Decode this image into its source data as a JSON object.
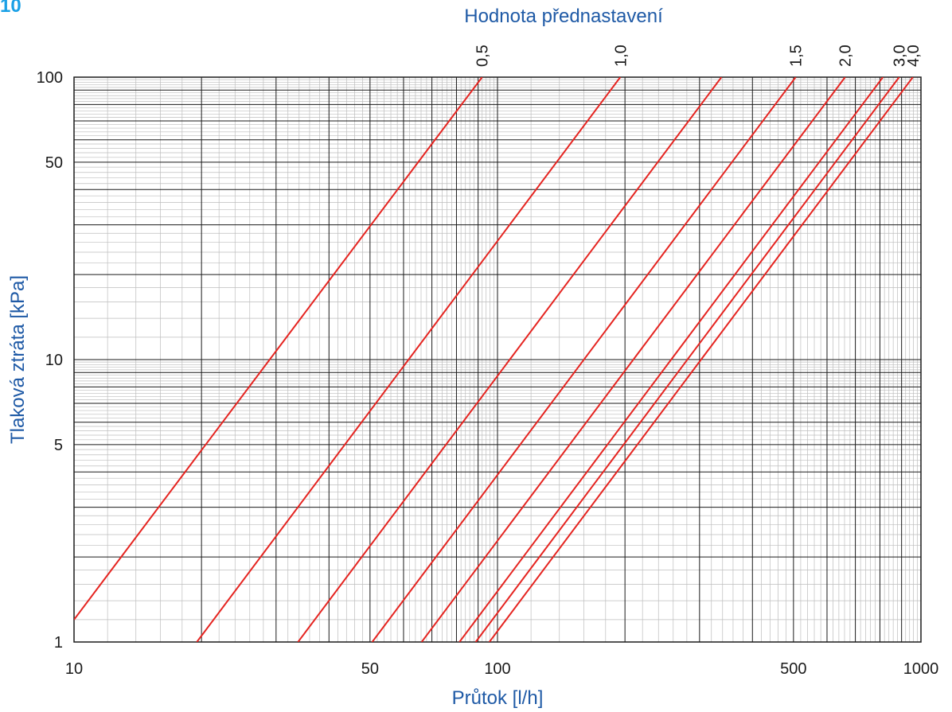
{
  "corner_label": "10",
  "colors": {
    "accent_text": "#1f5aa6",
    "corner_text": "#1aa0e6",
    "curve": "#e52420",
    "grid_major": "#1a1a1a",
    "grid_minor": "#bdbdbd"
  },
  "chart_data": {
    "type": "line",
    "title": "Hodnota přednastavení",
    "xlabel": "Průtok  [l/h]",
    "ylabel": "Tlaková ztráta  [kPa]",
    "xscale": "log",
    "yscale": "log",
    "xlim": [
      10,
      1000
    ],
    "ylim": [
      1,
      100
    ],
    "grid": true,
    "x_ticks": [
      {
        "value": 10,
        "label": "10"
      },
      {
        "value": 50,
        "label": "50"
      },
      {
        "value": 100,
        "label": "100"
      },
      {
        "value": 500,
        "label": "500"
      },
      {
        "value": 1000,
        "label": "1000"
      }
    ],
    "y_ticks": [
      {
        "value": 1,
        "label": "1"
      },
      {
        "value": 5,
        "label": "5"
      },
      {
        "value": 10,
        "label": "10"
      },
      {
        "value": 50,
        "label": "50"
      },
      {
        "value": 100,
        "label": "100"
      }
    ],
    "series": [
      {
        "name": "0,5",
        "x": [
          10,
          92
        ],
        "y": [
          1.2,
          100
        ]
      },
      {
        "name": "1,0",
        "x": [
          19.5,
          195
        ],
        "y": [
          1,
          100
        ]
      },
      {
        "name": "",
        "x": [
          33.8,
          338
        ],
        "y": [
          1,
          100
        ]
      },
      {
        "name": "1,5",
        "x": [
          50.6,
          506
        ],
        "y": [
          1,
          100
        ]
      },
      {
        "name": "2,0",
        "x": [
          66.2,
          662
        ],
        "y": [
          1,
          100
        ]
      },
      {
        "name": "",
        "x": [
          81.3,
          813
        ],
        "y": [
          1,
          100
        ]
      },
      {
        "name": "3,0",
        "x": [
          88.8,
          888
        ],
        "y": [
          1,
          100
        ]
      },
      {
        "name": "4,0",
        "x": [
          95.7,
          957
        ],
        "y": [
          1,
          100
        ]
      }
    ],
    "top_labels": [
      "0,5",
      "1,0",
      "1,5",
      "2,0",
      "3,0",
      "4,0"
    ]
  }
}
